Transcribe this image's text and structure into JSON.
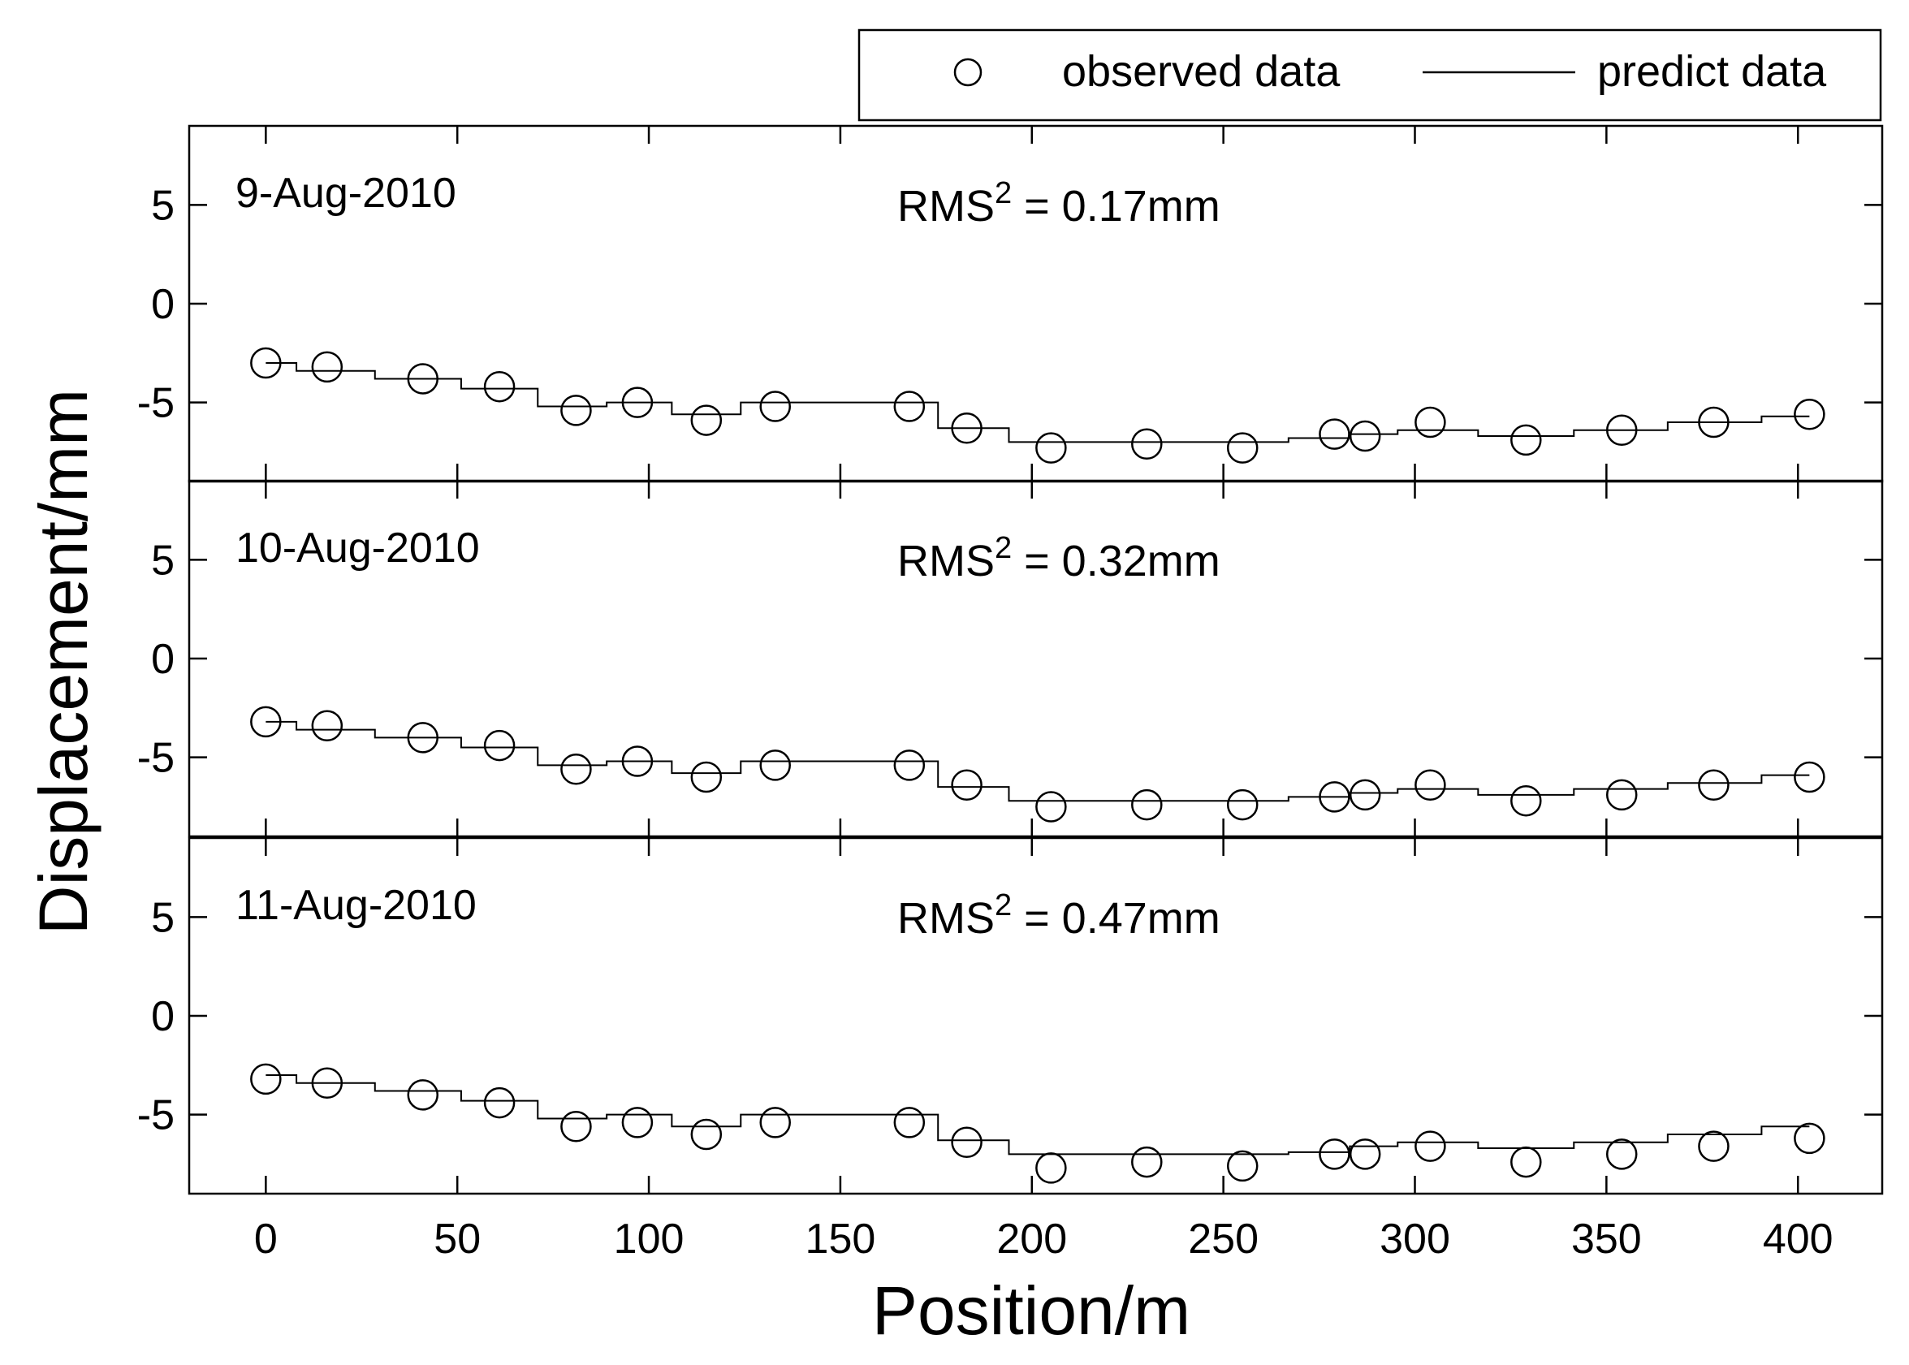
{
  "chart_data": {
    "type": "line",
    "legend": {
      "position": "top-right",
      "entries": [
        {
          "label": "observed data",
          "marker": "circle"
        },
        {
          "label": "predict data",
          "marker": "line"
        }
      ]
    },
    "xlabel": "Position/m",
    "ylabel": "Displacement/mm",
    "xlim": [
      -20,
      422
    ],
    "xticks": [
      0,
      50,
      100,
      150,
      200,
      250,
      300,
      350,
      400
    ],
    "xtick_labels": [
      "0",
      "50",
      "100",
      "150",
      "200",
      "250",
      "300",
      "350",
      "400"
    ],
    "ylim": [
      -9,
      9
    ],
    "yticks": [
      5,
      0,
      -5
    ],
    "ytick_labels": [
      "5",
      "0",
      "-5"
    ],
    "panels": [
      {
        "date": "9-Aug-2010",
        "rms_prefix": "RMS",
        "rms_sup": "2",
        "rms_value": " = 0.17mm",
        "observed": {
          "x": [
            0,
            16,
            41,
            61,
            81,
            97,
            115,
            133,
            168,
            183,
            205,
            230,
            255,
            279,
            287,
            304,
            329,
            354,
            378,
            403
          ],
          "y": [
            -3.0,
            -3.2,
            -3.8,
            -4.2,
            -5.4,
            -5.0,
            -5.9,
            -5.2,
            -5.2,
            -6.3,
            -7.3,
            -7.1,
            -7.3,
            -6.6,
            -6.7,
            -6.0,
            -6.9,
            -6.4,
            -6.0,
            -5.6
          ]
        },
        "predicted": {
          "x": [
            0,
            16,
            41,
            61,
            81,
            97,
            115,
            133,
            150,
            168,
            183,
            205,
            230,
            255,
            279,
            287,
            304,
            329,
            354,
            378,
            403
          ],
          "y": [
            -3.0,
            -3.4,
            -3.8,
            -4.3,
            -5.2,
            -5.0,
            -5.6,
            -5.0,
            -5.0,
            -5.0,
            -6.3,
            -7.0,
            -7.0,
            -7.0,
            -6.8,
            -6.6,
            -6.4,
            -6.7,
            -6.4,
            -6.0,
            -5.7
          ]
        }
      },
      {
        "date": "10-Aug-2010",
        "rms_prefix": "RMS",
        "rms_sup": "2",
        "rms_value": " = 0.32mm",
        "observed": {
          "x": [
            0,
            16,
            41,
            61,
            81,
            97,
            115,
            133,
            168,
            183,
            205,
            230,
            255,
            279,
            287,
            304,
            329,
            354,
            378,
            403
          ],
          "y": [
            -3.2,
            -3.4,
            -4.0,
            -4.4,
            -5.6,
            -5.2,
            -6.0,
            -5.4,
            -5.4,
            -6.4,
            -7.5,
            -7.4,
            -7.4,
            -7.0,
            -6.9,
            -6.4,
            -7.2,
            -6.9,
            -6.4,
            -6.0
          ]
        },
        "predicted": {
          "x": [
            0,
            16,
            41,
            61,
            81,
            97,
            115,
            133,
            150,
            168,
            183,
            205,
            230,
            255,
            279,
            287,
            304,
            329,
            354,
            378,
            403
          ],
          "y": [
            -3.2,
            -3.6,
            -4.0,
            -4.5,
            -5.4,
            -5.2,
            -5.8,
            -5.2,
            -5.2,
            -5.2,
            -6.5,
            -7.2,
            -7.2,
            -7.2,
            -7.0,
            -6.8,
            -6.6,
            -6.9,
            -6.6,
            -6.3,
            -5.9
          ]
        }
      },
      {
        "date": "11-Aug-2010",
        "rms_prefix": "RMS",
        "rms_sup": "2",
        "rms_value": " = 0.47mm",
        "observed": {
          "x": [
            0,
            16,
            41,
            61,
            81,
            97,
            115,
            133,
            168,
            183,
            205,
            230,
            255,
            279,
            287,
            304,
            329,
            354,
            378,
            403
          ],
          "y": [
            -3.2,
            -3.4,
            -4.0,
            -4.4,
            -5.6,
            -5.4,
            -6.0,
            -5.4,
            -5.4,
            -6.4,
            -7.7,
            -7.4,
            -7.6,
            -7.0,
            -7.0,
            -6.6,
            -7.4,
            -7.0,
            -6.6,
            -6.2
          ]
        },
        "predicted": {
          "x": [
            0,
            16,
            41,
            61,
            81,
            97,
            115,
            133,
            150,
            168,
            183,
            205,
            230,
            255,
            279,
            287,
            304,
            329,
            354,
            378,
            403
          ],
          "y": [
            -3.0,
            -3.4,
            -3.8,
            -4.3,
            -5.2,
            -5.0,
            -5.6,
            -5.0,
            -5.0,
            -5.0,
            -6.3,
            -7.0,
            -7.0,
            -7.0,
            -6.9,
            -6.6,
            -6.4,
            -6.7,
            -6.4,
            -6.0,
            -5.6
          ]
        }
      }
    ]
  }
}
